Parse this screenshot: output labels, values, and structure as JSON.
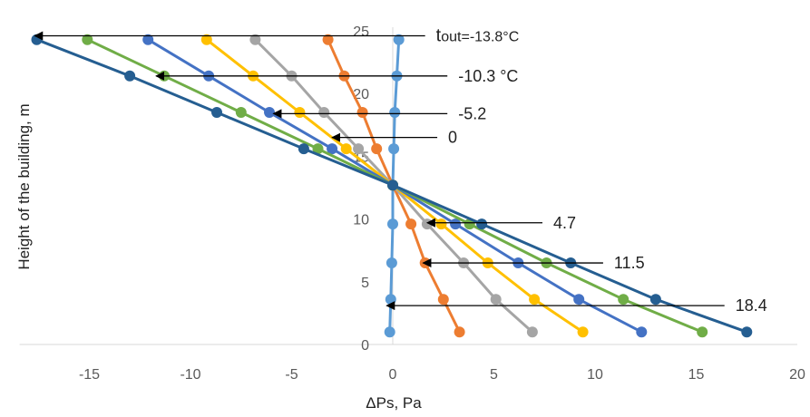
{
  "chart_data": {
    "type": "line",
    "xlabel": "ΔPs, Pa",
    "ylabel": "Height of the building, m",
    "xlim": [
      -18,
      20
    ],
    "ylim": [
      0,
      25
    ],
    "xticks": [
      -15,
      -10,
      -5,
      0,
      5,
      10,
      15,
      20
    ],
    "xtick_labels": [
      "-15",
      "-10",
      "-5",
      "0",
      "5",
      "10",
      "15",
      "20"
    ],
    "yticks": [
      0,
      5,
      10,
      15,
      20,
      25
    ],
    "ytick_labels": [
      "0",
      "5",
      "10",
      "15",
      "20",
      "25"
    ],
    "grid": false,
    "series": [
      {
        "color": "#5B9BD5",
        "points": [
          [
            0.3,
            24.3
          ],
          [
            0.2,
            21.4
          ],
          [
            0.1,
            18.5
          ],
          [
            0.05,
            15.6
          ],
          [
            0,
            12.7
          ],
          [
            0,
            9.6
          ],
          [
            -0.05,
            6.5
          ],
          [
            -0.1,
            3.6
          ],
          [
            -0.15,
            1.0
          ]
        ]
      },
      {
        "color": "#ED7D31",
        "points": [
          [
            -3.2,
            24.3
          ],
          [
            -2.4,
            21.4
          ],
          [
            -1.5,
            18.5
          ],
          [
            -0.8,
            15.6
          ],
          [
            0,
            12.7
          ],
          [
            0.9,
            9.6
          ],
          [
            1.6,
            6.5
          ],
          [
            2.5,
            3.6
          ],
          [
            3.3,
            1.0
          ]
        ]
      },
      {
        "color": "#A5A5A5",
        "points": [
          [
            -6.8,
            24.3
          ],
          [
            -5.0,
            21.4
          ],
          [
            -3.4,
            18.5
          ],
          [
            -1.7,
            15.6
          ],
          [
            0,
            12.7
          ],
          [
            1.7,
            9.6
          ],
          [
            3.5,
            6.5
          ],
          [
            5.1,
            3.6
          ],
          [
            6.9,
            1.0
          ]
        ]
      },
      {
        "color": "#FFC000",
        "points": [
          [
            -9.2,
            24.3
          ],
          [
            -6.9,
            21.4
          ],
          [
            -4.6,
            18.5
          ],
          [
            -2.3,
            15.6
          ],
          [
            0,
            12.7
          ],
          [
            2.4,
            9.6
          ],
          [
            4.7,
            6.5
          ],
          [
            7.0,
            3.6
          ],
          [
            9.4,
            1.0
          ]
        ]
      },
      {
        "color": "#4472C4",
        "points": [
          [
            -12.1,
            24.3
          ],
          [
            -9.1,
            21.4
          ],
          [
            -6.1,
            18.5
          ],
          [
            -3.0,
            15.6
          ],
          [
            0,
            12.7
          ],
          [
            3.1,
            9.6
          ],
          [
            6.2,
            6.5
          ],
          [
            9.2,
            3.6
          ],
          [
            12.3,
            1.0
          ]
        ]
      },
      {
        "color": "#70AD47",
        "points": [
          [
            -15.1,
            24.3
          ],
          [
            -11.3,
            21.4
          ],
          [
            -7.5,
            18.5
          ],
          [
            -3.7,
            15.6
          ],
          [
            0,
            12.7
          ],
          [
            3.8,
            9.6
          ],
          [
            7.6,
            6.5
          ],
          [
            11.4,
            3.6
          ],
          [
            15.3,
            1.0
          ]
        ]
      },
      {
        "color": "#255E91",
        "points": [
          [
            -17.6,
            24.3
          ],
          [
            -13.0,
            21.4
          ],
          [
            -8.7,
            18.5
          ],
          [
            -4.4,
            15.6
          ],
          [
            0,
            12.7
          ],
          [
            4.4,
            9.6
          ],
          [
            8.8,
            6.5
          ],
          [
            13.0,
            3.6
          ],
          [
            17.5,
            1.0
          ]
        ]
      }
    ],
    "annotations": [
      {
        "label_prefix": "t",
        "label_rest": "out=-13.8°C",
        "arrow_from": [
          1.6,
          24.6
        ],
        "arrow_to": [
          -17.7,
          24.6
        ]
      },
      {
        "label": "-10.3 °C",
        "arrow_from": [
          2.7,
          21.4
        ],
        "arrow_to": [
          -11.7,
          21.4
        ]
      },
      {
        "label": "-5.2",
        "arrow_from": [
          2.7,
          18.4
        ],
        "arrow_to": [
          -5.9,
          18.4
        ]
      },
      {
        "label": "0",
        "arrow_from": [
          2.2,
          16.5
        ],
        "arrow_to": [
          -3.0,
          16.5
        ]
      },
      {
        "label": "4.7",
        "arrow_from": [
          7.4,
          9.7
        ],
        "arrow_to": [
          1.7,
          9.7
        ]
      },
      {
        "label": "11.5",
        "arrow_from": [
          10.4,
          6.5
        ],
        "arrow_to": [
          1.5,
          6.5
        ]
      },
      {
        "label": "18.4",
        "arrow_from": [
          16.4,
          3.1
        ],
        "arrow_to": [
          -0.3,
          3.1
        ]
      }
    ]
  }
}
